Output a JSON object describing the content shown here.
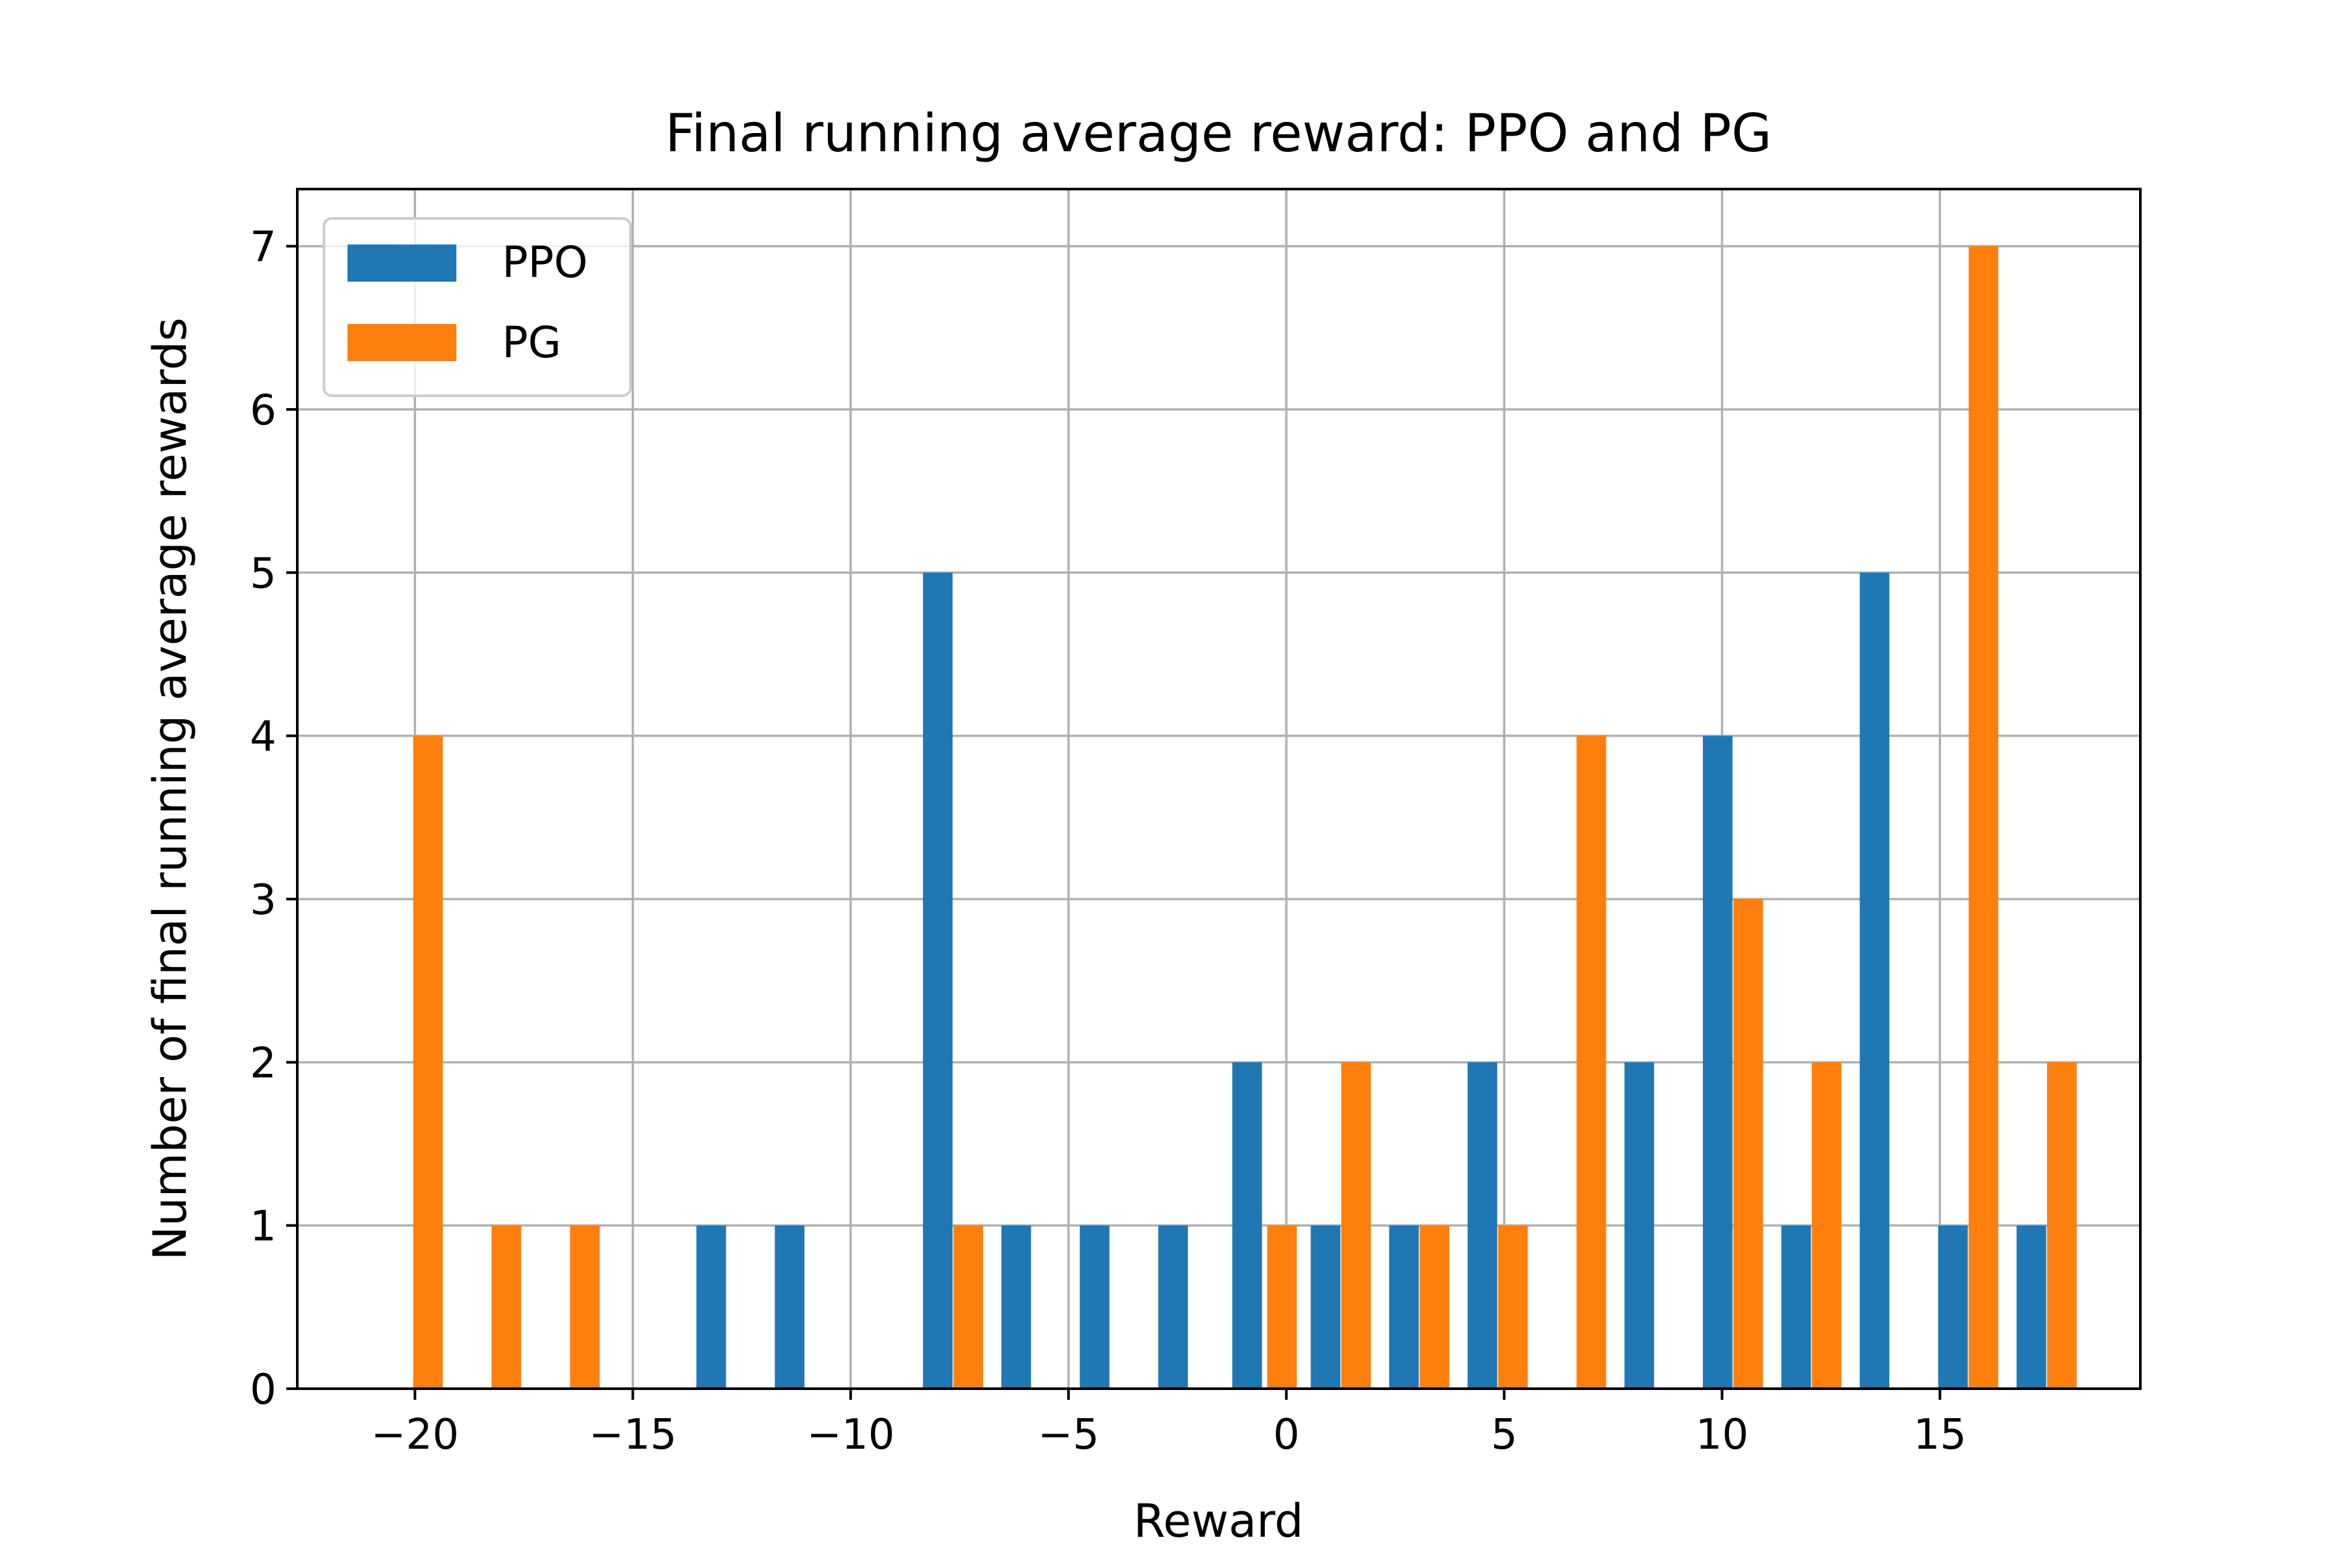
{
  "chart_data": {
    "type": "bar",
    "title": "Final running average reward: PPO and PG",
    "xlabel": "Reward",
    "ylabel": "Number of final running average rewards",
    "xlim": [
      -22.7,
      19.6
    ],
    "ylim": [
      0,
      7.35
    ],
    "x_ticks": [
      -20,
      -15,
      -10,
      -5,
      0,
      5,
      10,
      15
    ],
    "x_tick_labels": [
      "−20",
      "−15",
      "−10",
      "−5",
      "0",
      "5",
      "10",
      "15"
    ],
    "y_ticks": [
      0,
      1,
      2,
      3,
      4,
      5,
      6,
      7
    ],
    "y_tick_labels": [
      "0",
      "1",
      "2",
      "3",
      "4",
      "5",
      "6",
      "7"
    ],
    "grid": true,
    "legend_position": "upper-left",
    "bin_width": 0.68,
    "series": [
      {
        "name": "PPO",
        "color": "#1f77b4",
        "x": [
          -20.0,
          -18.2,
          -16.4,
          -13.2,
          -11.4,
          -8.0,
          -6.2,
          -4.4,
          -2.6,
          -0.9,
          0.9,
          2.7,
          4.5,
          6.3,
          8.1,
          9.9,
          11.7,
          13.5,
          15.3,
          17.1
        ],
        "values": [
          0,
          0,
          0,
          1,
          1,
          5,
          1,
          1,
          1,
          2,
          1,
          1,
          2,
          0,
          2,
          4,
          1,
          5,
          1,
          1
        ]
      },
      {
        "name": "PG",
        "color": "#ff7f0e",
        "x": [
          -19.7,
          -17.9,
          -16.1,
          -14.3,
          -12.5,
          -10.7,
          -7.3,
          -5.5,
          -3.7,
          -1.9,
          -0.1,
          1.6,
          3.4,
          5.2,
          7.0,
          8.8,
          10.6,
          12.4,
          14.2,
          16.0,
          17.8
        ],
        "values": [
          4,
          1,
          1,
          0,
          0,
          0,
          1,
          0,
          0,
          0,
          1,
          2,
          1,
          1,
          4,
          0,
          3,
          2,
          0,
          7,
          2
        ]
      }
    ]
  }
}
